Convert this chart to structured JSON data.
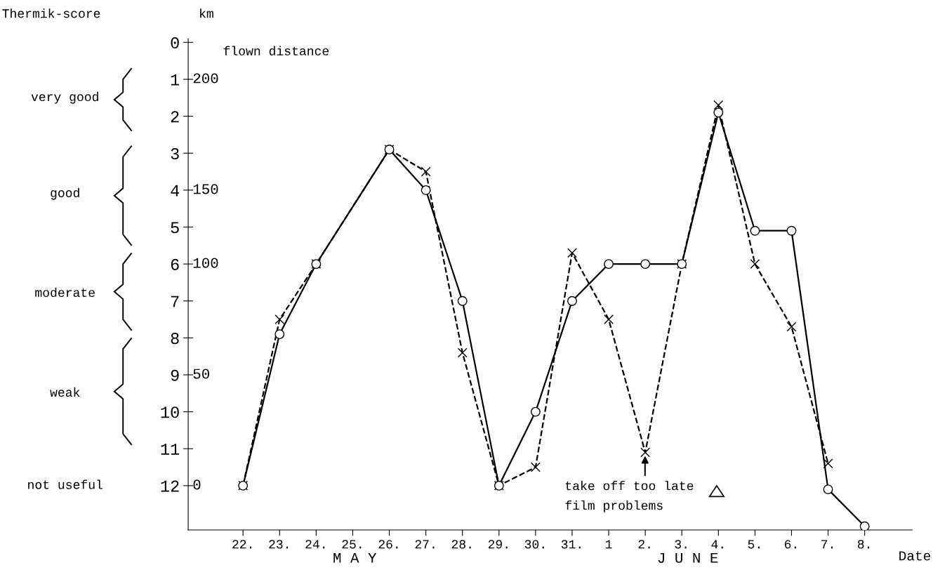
{
  "chart_data": {
    "type": "line",
    "title": "Thermik-score",
    "y2label": "km",
    "xlabel": "Date",
    "categories": [
      "22.",
      "23.",
      "24.",
      "25.",
      "26.",
      "27.",
      "28.",
      "29.",
      "30.",
      "31.",
      "1",
      "2.",
      "3.",
      "4.",
      "5.",
      "6.",
      "7.",
      "8."
    ],
    "series": [
      {
        "color": "#000000",
        "marker": "circle",
        "line_style": "solid",
        "values": [
          12,
          7.9,
          6,
          null,
          2.9,
          4,
          7,
          12,
          10,
          7,
          6,
          6,
          6,
          1.9,
          5.1,
          5.1,
          12.1,
          13.1
        ]
      },
      {
        "color": "#000000",
        "marker": "cross",
        "line_style": "dashed",
        "values": [
          12,
          7.5,
          6,
          null,
          2.9,
          3.5,
          8.4,
          12,
          11.5,
          5.7,
          7.5,
          11.1,
          6,
          1.7,
          6,
          7.7,
          11.4,
          null
        ]
      }
    ],
    "ylim": [
      13.2,
      -0.1
    ],
    "yticks": [
      0,
      1,
      2,
      3,
      4,
      5,
      6,
      7,
      8,
      9,
      10,
      11,
      12
    ],
    "annotations": [
      "flown distance",
      "take off too late",
      "film problems",
      "M A Y",
      "J U N E",
      "very good",
      "good",
      "moderate",
      "weak",
      "not useful",
      "200",
      "150",
      "100",
      "50",
      "0"
    ],
    "grid": false,
    "legend": false
  }
}
